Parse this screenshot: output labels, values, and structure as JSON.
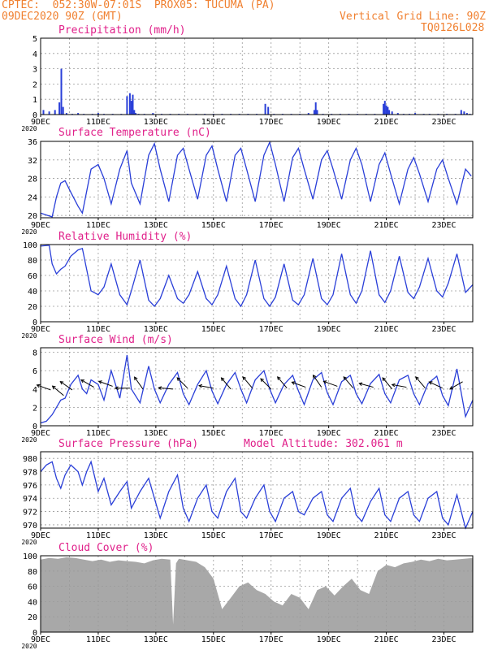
{
  "header": {
    "line1_left": "CPTEC:  052:30W-07:01S  PROX05: TUCUMA (PA)",
    "line2_left": "09DEC2020 90Z (GMT)",
    "line2_right": "Vertical Grid Line: 90Z",
    "line3_right": "TQ0126L028"
  },
  "colors": {
    "line": "#2a3fd8",
    "title": "#e0208a",
    "header": "#f08030",
    "cloud": "#a8a8a8",
    "grid": "#9a9a9a"
  },
  "x_tick_labels": [
    "9DEC",
    "11DEC",
    "13DEC",
    "15DEC",
    "17DEC",
    "19DEC",
    "21DEC",
    "23DEC"
  ],
  "year_label": "2020",
  "chart_data": [
    {
      "id": "precip",
      "type": "bar",
      "title": "Precipitation (mm/h)",
      "ylim": [
        0,
        5
      ],
      "yticks": [
        0,
        1,
        2,
        3,
        4,
        5
      ],
      "xlim": [
        0,
        15
      ],
      "x": [
        0.1,
        0.3,
        0.5,
        0.65,
        0.72,
        0.78,
        0.9,
        1.1,
        1.3,
        1.5,
        1.8,
        2.0,
        2.2,
        2.5,
        2.8,
        3.0,
        3.1,
        3.15,
        3.2,
        3.25,
        3.3,
        3.4,
        3.6,
        3.9,
        4.2,
        4.5,
        4.8,
        5.1,
        5.4,
        5.7,
        6.0,
        6.3,
        6.6,
        6.9,
        7.2,
        7.5,
        7.8,
        7.9,
        8.1,
        8.4,
        8.7,
        9.0,
        9.3,
        9.5,
        9.55,
        9.6,
        9.8,
        10.1,
        10.4,
        10.7,
        11.0,
        11.3,
        11.6,
        11.9,
        11.95,
        12.0,
        12.05,
        12.1,
        12.2,
        12.4,
        12.6,
        12.8,
        13.0,
        13.3,
        13.5,
        13.8,
        14.1,
        14.4,
        14.6,
        14.7,
        14.8,
        14.9
      ],
      "values": [
        0.3,
        0.2,
        0.3,
        0.8,
        3.0,
        0.5,
        0.1,
        0.05,
        0.1,
        0.05,
        0.05,
        0.1,
        0.05,
        0.05,
        0.05,
        1.2,
        1.4,
        0.9,
        1.3,
        0.3,
        0.1,
        0.05,
        0.05,
        0.1,
        0.05,
        0.05,
        0.05,
        0.05,
        0.05,
        0.05,
        0.05,
        0.05,
        0.05,
        0.05,
        0.05,
        0.05,
        0.7,
        0.5,
        0.05,
        0.05,
        0.05,
        0.05,
        0.1,
        0.3,
        0.8,
        0.3,
        0.05,
        0.05,
        0.05,
        0.05,
        0.05,
        0.05,
        0.05,
        0.7,
        0.9,
        0.6,
        0.5,
        0.3,
        0.2,
        0.1,
        0.05,
        0.05,
        0.1,
        0.05,
        0.05,
        0.05,
        0.05,
        0.05,
        0.3,
        0.2,
        0.1,
        0.05
      ]
    },
    {
      "id": "temp",
      "type": "line",
      "title": "Surface Temperature (nC)",
      "ylim": [
        19.5,
        36
      ],
      "yticks": [
        20,
        24,
        28,
        32,
        36
      ],
      "xlim": [
        0,
        15
      ],
      "x": [
        0,
        0.25,
        0.4,
        0.55,
        0.7,
        0.85,
        1.05,
        1.3,
        1.45,
        1.75,
        2.0,
        2.2,
        2.45,
        2.75,
        3.0,
        3.15,
        3.45,
        3.75,
        3.95,
        4.15,
        4.45,
        4.75,
        4.95,
        5.15,
        5.45,
        5.75,
        5.95,
        6.15,
        6.45,
        6.75,
        6.95,
        7.15,
        7.45,
        7.75,
        7.95,
        8.15,
        8.45,
        8.75,
        8.95,
        9.15,
        9.45,
        9.75,
        9.95,
        10.15,
        10.45,
        10.75,
        10.95,
        11.15,
        11.45,
        11.75,
        11.95,
        12.15,
        12.45,
        12.75,
        12.95,
        13.15,
        13.45,
        13.75,
        13.95,
        14.15,
        14.45,
        14.75,
        14.95
      ],
      "values": [
        20.5,
        20,
        19.7,
        24,
        27,
        27.5,
        25,
        22,
        20.5,
        30,
        31,
        28,
        22.5,
        30,
        34,
        27,
        22.5,
        33,
        35.5,
        30,
        23,
        33,
        34.5,
        30,
        23.5,
        33,
        35,
        30,
        23,
        33,
        34.5,
        30,
        23,
        33,
        35.8,
        31,
        23,
        32.5,
        34.5,
        30,
        23.5,
        32,
        34,
        30,
        23.5,
        32,
        34.5,
        31,
        23,
        31,
        33.5,
        29,
        22.5,
        30,
        32.5,
        29,
        23,
        30,
        32,
        28,
        22.5,
        30,
        28.5
      ]
    },
    {
      "id": "rh",
      "type": "line",
      "title": "Relative Humidity (%)",
      "ylim": [
        0,
        100
      ],
      "yticks": [
        0,
        20,
        40,
        60,
        80,
        100
      ],
      "xlim": [
        0,
        15
      ],
      "x": [
        0,
        0.3,
        0.4,
        0.55,
        0.7,
        0.85,
        1.05,
        1.3,
        1.45,
        1.75,
        2.0,
        2.2,
        2.45,
        2.75,
        3.0,
        3.15,
        3.45,
        3.75,
        3.95,
        4.15,
        4.45,
        4.75,
        4.95,
        5.15,
        5.45,
        5.75,
        5.95,
        6.15,
        6.45,
        6.75,
        6.95,
        7.15,
        7.45,
        7.75,
        7.95,
        8.15,
        8.45,
        8.75,
        8.95,
        9.15,
        9.45,
        9.75,
        9.95,
        10.15,
        10.45,
        10.75,
        10.95,
        11.15,
        11.45,
        11.75,
        11.95,
        12.15,
        12.45,
        12.75,
        12.95,
        13.15,
        13.45,
        13.75,
        13.95,
        14.15,
        14.45,
        14.75,
        15.0
      ],
      "values": [
        98,
        99,
        75,
        62,
        68,
        72,
        85,
        93,
        95,
        40,
        35,
        45,
        75,
        35,
        22,
        40,
        80,
        28,
        20,
        30,
        60,
        30,
        24,
        35,
        65,
        30,
        22,
        35,
        72,
        30,
        20,
        35,
        80,
        30,
        20,
        32,
        75,
        28,
        22,
        35,
        82,
        30,
        22,
        35,
        88,
        35,
        24,
        40,
        92,
        35,
        25,
        40,
        85,
        38,
        30,
        45,
        82,
        40,
        32,
        50,
        88,
        38,
        48
      ]
    },
    {
      "id": "wind",
      "type": "line",
      "title": "Surface Wind (m/s)",
      "ylim": [
        0,
        8.5
      ],
      "yticks": [
        0,
        2,
        4,
        6,
        8
      ],
      "xlim": [
        0,
        15
      ],
      "x": [
        0,
        0.2,
        0.4,
        0.55,
        0.7,
        0.85,
        1.05,
        1.3,
        1.45,
        1.6,
        1.75,
        2.0,
        2.2,
        2.45,
        2.75,
        3.0,
        3.15,
        3.45,
        3.75,
        3.95,
        4.15,
        4.45,
        4.75,
        4.95,
        5.15,
        5.45,
        5.75,
        5.95,
        6.15,
        6.45,
        6.75,
        6.95,
        7.15,
        7.45,
        7.75,
        7.95,
        8.15,
        8.45,
        8.75,
        8.95,
        9.15,
        9.45,
        9.75,
        9.95,
        10.15,
        10.45,
        10.75,
        10.95,
        11.15,
        11.45,
        11.75,
        11.95,
        12.15,
        12.45,
        12.75,
        12.95,
        13.15,
        13.45,
        13.75,
        13.95,
        14.15,
        14.45,
        14.75,
        15.0
      ],
      "values": [
        0.3,
        0.5,
        1.2,
        2.0,
        2.8,
        3.0,
        4.5,
        5.5,
        4.0,
        3.5,
        5.0,
        4.5,
        2.8,
        6.0,
        3.0,
        7.7,
        4.0,
        2.5,
        6.5,
        4.0,
        2.5,
        4.5,
        5.8,
        3.5,
        2.3,
        4.5,
        6.0,
        3.8,
        2.4,
        4.5,
        5.8,
        4.0,
        2.5,
        5.0,
        6.0,
        4.0,
        2.5,
        4.5,
        5.5,
        3.8,
        2.3,
        5.0,
        5.8,
        3.6,
        2.3,
        4.8,
        5.5,
        3.5,
        2.4,
        4.6,
        5.6,
        3.5,
        2.5,
        5.0,
        5.5,
        3.5,
        2.3,
        4.6,
        5.4,
        3.3,
        2.2,
        6.2,
        1.0,
        2.8
      ],
      "vectors": [
        {
          "x": 0.35,
          "y": 3.9,
          "angle": 200
        },
        {
          "x": 0.8,
          "y": 3.3,
          "angle": 220
        },
        {
          "x": 1.1,
          "y": 3.9,
          "angle": 215
        },
        {
          "x": 1.85,
          "y": 4.2,
          "angle": 210
        },
        {
          "x": 2.5,
          "y": 4.3,
          "angle": 200
        },
        {
          "x": 3.1,
          "y": 4.1,
          "angle": 180
        },
        {
          "x": 3.55,
          "y": 4.0,
          "angle": 235
        },
        {
          "x": 4.6,
          "y": 4.0,
          "angle": 185
        },
        {
          "x": 5.1,
          "y": 4.1,
          "angle": 225
        },
        {
          "x": 6.0,
          "y": 4.1,
          "angle": 190
        },
        {
          "x": 6.6,
          "y": 4.0,
          "angle": 230
        },
        {
          "x": 7.35,
          "y": 4.1,
          "angle": 230
        },
        {
          "x": 8.0,
          "y": 4.0,
          "angle": 225
        },
        {
          "x": 8.55,
          "y": 4.1,
          "angle": 230
        },
        {
          "x": 9.2,
          "y": 4.2,
          "angle": 200
        },
        {
          "x": 9.75,
          "y": 4.2,
          "angle": 235
        },
        {
          "x": 10.3,
          "y": 4.3,
          "angle": 200
        },
        {
          "x": 10.85,
          "y": 4.1,
          "angle": 230
        },
        {
          "x": 11.55,
          "y": 4.2,
          "angle": 195
        },
        {
          "x": 12.2,
          "y": 4.0,
          "angle": 230
        },
        {
          "x": 12.7,
          "y": 4.2,
          "angle": 190
        },
        {
          "x": 13.35,
          "y": 4.1,
          "angle": 230
        },
        {
          "x": 13.95,
          "y": 4.1,
          "angle": 205
        },
        {
          "x": 14.65,
          "y": 4.8,
          "angle": 150
        }
      ]
    },
    {
      "id": "pres",
      "type": "line",
      "title": "Surface Pressure (hPa)",
      "annotation": "Model Altitude: 302.061  m",
      "ylim": [
        969.5,
        981
      ],
      "yticks": [
        970,
        972,
        974,
        976,
        978,
        980
      ],
      "xlim": [
        0,
        15
      ],
      "x": [
        0,
        0.2,
        0.4,
        0.55,
        0.7,
        0.85,
        1.05,
        1.3,
        1.45,
        1.6,
        1.75,
        2.0,
        2.2,
        2.45,
        2.75,
        3.0,
        3.15,
        3.45,
        3.75,
        3.95,
        4.15,
        4.45,
        4.75,
        4.95,
        5.15,
        5.45,
        5.75,
        5.95,
        6.15,
        6.45,
        6.75,
        6.95,
        7.15,
        7.45,
        7.75,
        7.95,
        8.15,
        8.45,
        8.75,
        8.95,
        9.15,
        9.45,
        9.75,
        9.95,
        10.15,
        10.45,
        10.75,
        10.95,
        11.15,
        11.45,
        11.75,
        11.95,
        12.15,
        12.45,
        12.75,
        12.95,
        13.15,
        13.45,
        13.75,
        13.95,
        14.15,
        14.45,
        14.75,
        15.0
      ],
      "values": [
        978,
        979,
        979.5,
        977,
        975.5,
        977.5,
        979,
        978,
        976,
        978,
        979.5,
        975,
        977,
        973,
        975,
        976.5,
        972.5,
        975,
        977,
        974,
        971,
        975,
        977.5,
        972.5,
        970.5,
        974,
        976,
        972,
        971,
        975,
        977,
        972,
        971,
        974,
        976,
        972,
        970.5,
        974,
        975,
        972,
        971.5,
        974,
        975,
        971.5,
        970.5,
        974,
        975.5,
        971.5,
        970.5,
        973.5,
        975.5,
        971.5,
        970.5,
        974,
        975,
        971.5,
        970.5,
        974,
        975,
        971,
        970,
        974.5,
        969.5,
        972
      ]
    },
    {
      "id": "cloud",
      "type": "area",
      "title": "Cloud Cover (%)",
      "ylim": [
        0,
        100
      ],
      "yticks": [
        0,
        20,
        40,
        60,
        80,
        100
      ],
      "xlim": [
        0,
        15
      ],
      "x": [
        0,
        0.3,
        0.6,
        0.9,
        1.2,
        1.5,
        1.8,
        2.1,
        2.4,
        2.7,
        3.0,
        3.3,
        3.6,
        3.9,
        4.2,
        4.5,
        4.6,
        4.7,
        4.8,
        5.1,
        5.4,
        5.7,
        6.0,
        6.3,
        6.6,
        6.9,
        7.2,
        7.5,
        7.8,
        8.1,
        8.4,
        8.7,
        9.0,
        9.3,
        9.6,
        9.9,
        10.2,
        10.5,
        10.8,
        11.1,
        11.4,
        11.7,
        12.0,
        12.3,
        12.6,
        12.9,
        13.2,
        13.5,
        13.8,
        14.1,
        14.4,
        14.7,
        15.0
      ],
      "values": [
        95,
        97,
        96,
        98,
        97,
        95,
        93,
        95,
        92,
        94,
        93,
        92,
        90,
        94,
        96,
        95,
        10,
        90,
        96,
        94,
        92,
        85,
        70,
        30,
        45,
        60,
        65,
        55,
        50,
        40,
        35,
        50,
        45,
        30,
        55,
        60,
        48,
        60,
        70,
        55,
        50,
        80,
        88,
        85,
        90,
        92,
        95,
        93,
        96,
        94,
        95,
        96,
        97
      ]
    }
  ]
}
